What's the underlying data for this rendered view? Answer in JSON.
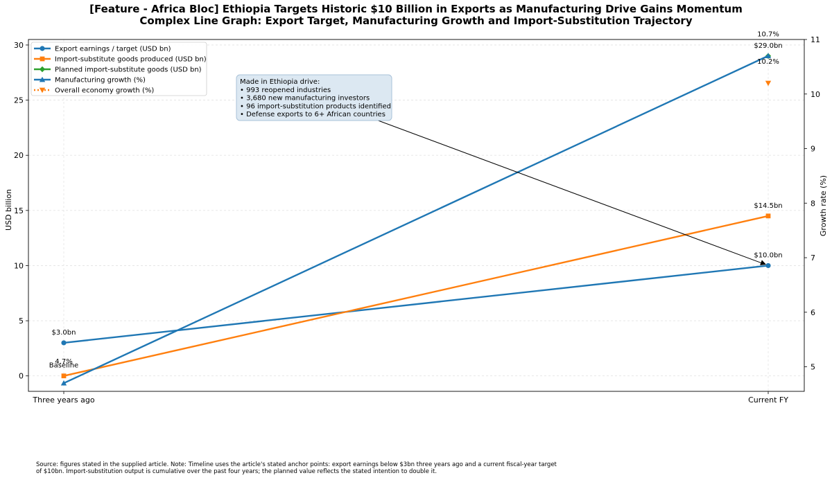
{
  "chart_data": {
    "type": "line",
    "title": "[Feature - Africa Bloc] Ethiopia Targets Historic $10 Billion in Exports as Manufacturing Drive Gains Momentum",
    "subtitle": "Complex Line Graph: Export Target, Manufacturing Growth and Import-Substitution Trajectory",
    "categories": [
      "Three years ago",
      "Current FY"
    ],
    "ylabel": "USD billion",
    "y2label": "Growth rate (%)",
    "ylim": [
      -1.4,
      30.5
    ],
    "y2lim": [
      4.55,
      11.0
    ],
    "yticks": [
      "0",
      "5",
      "10",
      "15",
      "20",
      "25",
      "30"
    ],
    "y2ticks": [
      "5",
      "6",
      "7",
      "8",
      "9",
      "10",
      "11"
    ],
    "grid": true,
    "legend_position": "top-left",
    "series": [
      {
        "name": "Export earnings / target (USD bn)",
        "axis": "left",
        "color": "#1f77b4",
        "marker": "circle",
        "style": "solid",
        "points": [
          {
            "x": "Three years ago",
            "y": 3.0
          },
          {
            "x": "Current FY",
            "y": 10.0
          }
        ]
      },
      {
        "name": "Import-substitute goods produced (USD bn)",
        "axis": "left",
        "color": "#ff7f0e",
        "marker": "square",
        "style": "solid",
        "points": [
          {
            "x": "Three years ago",
            "y": 0
          },
          {
            "x": "Current FY",
            "y": 14.5
          }
        ]
      },
      {
        "name": "Planned import-substitute goods (USD bn)",
        "axis": "left",
        "color": "#2ca02c",
        "marker": "diamond",
        "style": "solid",
        "points": [
          {
            "x": "Current FY",
            "y": 29.0
          }
        ]
      },
      {
        "name": "Manufacturing growth (%)",
        "axis": "right",
        "color": "#1f77b4",
        "marker": "triangle-up",
        "style": "solid",
        "points": [
          {
            "x": "Three years ago",
            "y": 4.7
          },
          {
            "x": "Current FY",
            "y": 10.7
          }
        ]
      },
      {
        "name": "Overall economy growth (%)",
        "axis": "right",
        "color": "#ff7f0e",
        "marker": "triangle-down",
        "style": "dotted",
        "points": [
          {
            "x": "Current FY",
            "y": 10.2
          }
        ]
      }
    ],
    "data_labels": [
      {
        "text": "$3.0bn",
        "series": 0,
        "point": 0,
        "pos": "above"
      },
      {
        "text": "$10.0bn",
        "series": 0,
        "point": 1,
        "pos": "above"
      },
      {
        "text": "$14.5bn",
        "series": 1,
        "point": 1,
        "pos": "above"
      },
      {
        "text": "Baseline",
        "series": 1,
        "point": 0,
        "pos": "above"
      },
      {
        "text": "$29.0bn",
        "series": 2,
        "point": 0,
        "pos": "above"
      },
      {
        "text": "4.7%",
        "series": 3,
        "point": 0,
        "pos": "above-far"
      },
      {
        "text": "10.7%",
        "series": 3,
        "point": 1,
        "pos": "above-far"
      },
      {
        "text": "10.2%",
        "series": 4,
        "point": 0,
        "pos": "above-far"
      }
    ],
    "annotation": {
      "lines": [
        "Made in Ethiopia drive:",
        "• 993 reopened industries",
        "• 3,680 new manufacturing investors",
        "• 96 import-substitution products identified",
        "• Defense exports to 6+ African countries"
      ],
      "arrow_to": {
        "series": 0,
        "point": 1
      }
    }
  },
  "source_note": "Source: figures stated in the supplied article. Note: Timeline uses the article's stated anchor points: export earnings below $3bn three years ago and a current fiscal-year target of $10bn. Import-substitution output is cumulative over the past four years; the planned value reflects the stated intention to double it.",
  "colors": {
    "blue": "#1f77b4",
    "orange": "#ff7f0e",
    "green": "#2ca02c",
    "annotation_fill": "#dce8f2",
    "annotation_edge": "#a9c2d8"
  }
}
